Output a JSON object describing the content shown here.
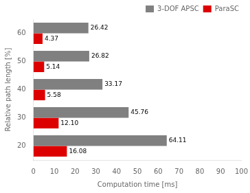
{
  "chart_data": {
    "type": "bar",
    "orientation": "horizontal",
    "categories": [
      "20",
      "30",
      "40",
      "50",
      "60"
    ],
    "series": [
      {
        "name": "3-DOF APSC",
        "color": "#808080",
        "values": [
          64.11,
          45.76,
          33.17,
          26.82,
          26.42
        ],
        "value_labels": [
          "64.11",
          "45.76",
          "33.17",
          "26.82",
          "26.42"
        ]
      },
      {
        "name": "ParaSC",
        "color": "#dd0000",
        "values": [
          16.08,
          12.1,
          5.58,
          5.14,
          4.37
        ],
        "value_labels": [
          "16.08",
          "12.10",
          "5.58",
          "5.14",
          "4.37"
        ]
      }
    ],
    "xlabel": "Computation time [ms]",
    "ylabel": "Relative path length [%]",
    "xlim": [
      0,
      100
    ],
    "xticks": [
      0,
      10,
      20,
      30,
      40,
      50,
      60,
      70,
      80,
      90,
      100
    ],
    "grid": false,
    "legend": "upper right",
    "data_labels": true
  }
}
